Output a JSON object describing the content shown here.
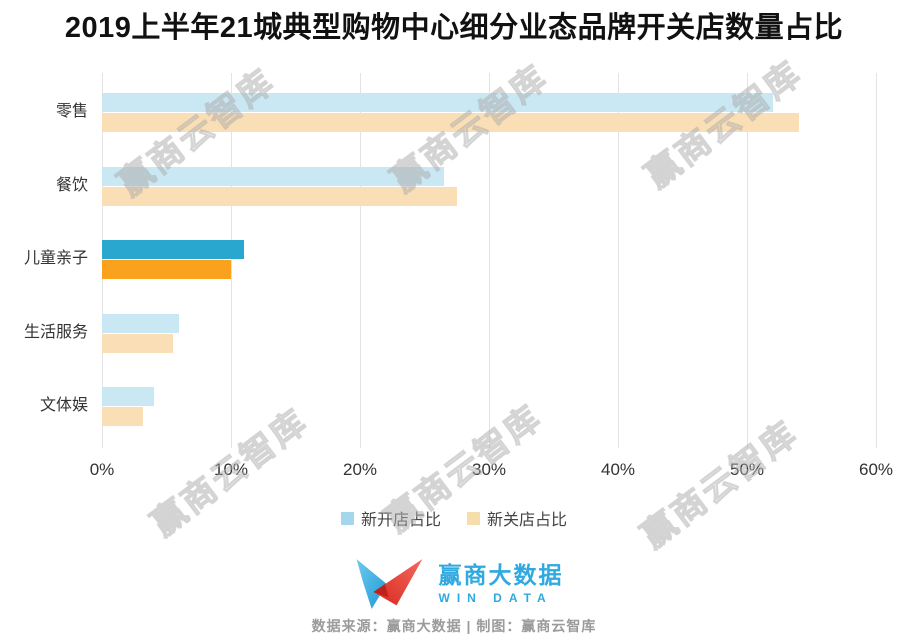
{
  "title": "2019上半年21城典型购物中心细分业态品牌开关店数量占比",
  "chart_data": {
    "type": "bar",
    "orientation": "horizontal",
    "title": "2019上半年21城典型购物中心细分业态品牌开关店数量占比",
    "categories": [
      "零售",
      "餐饮",
      "儿童亲子",
      "生活服务",
      "文体娱"
    ],
    "series": [
      {
        "name": "新开店占比",
        "values": [
          52,
          26.5,
          11,
          6,
          4
        ]
      },
      {
        "name": "新关店占比",
        "values": [
          54,
          27.5,
          10,
          5.5,
          3.2
        ]
      }
    ],
    "xlim": [
      0,
      60
    ],
    "x_ticks": [
      "0%",
      "10%",
      "20%",
      "30%",
      "40%",
      "50%",
      "60%"
    ],
    "grid": "vertical",
    "legend_position": "bottom",
    "highlight_index": 2
  },
  "legend": {
    "items": [
      {
        "label": "新开店占比",
        "color": "#A5D7EC"
      },
      {
        "label": "新关店占比",
        "color": "#F6DDAC"
      }
    ]
  },
  "watermark_text": "赢商云智库",
  "footer": {
    "logo_cn": "赢商大数据",
    "logo_en": "WIN DATA",
    "source_line": "数据来源：赢商大数据 | 制图：赢商云智库"
  },
  "colors": {
    "bar_open": "#C9E8F4",
    "bar_close": "#FADFB6",
    "bar_open_highlight": "#29A7CE",
    "bar_close_highlight": "#FAA21D",
    "grid": "#E3E3E3",
    "brand_blue": "#2FA9E0",
    "logo_red": "#DF372C",
    "source_text": "#9B9B9B",
    "watermark": "#BFBFBF"
  }
}
